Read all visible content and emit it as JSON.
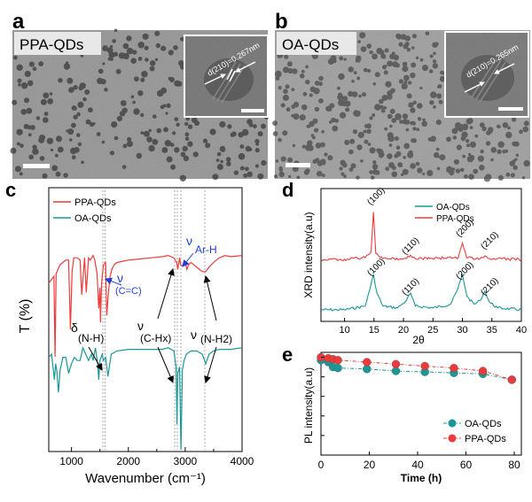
{
  "panels": {
    "a": {
      "letter": "a",
      "label": "PPA-QDs",
      "inset_text": "d(210)=0.267nm"
    },
    "b": {
      "letter": "b",
      "label": "OA-QDs",
      "inset_text": "d(210)=0.265nm"
    },
    "c": {
      "letter": "c"
    },
    "d": {
      "letter": "d"
    },
    "e": {
      "letter": "e"
    }
  },
  "colors": {
    "ppa": "#ee3a3a",
    "oa": "#1a9896",
    "annot": "#1f3fd1"
  },
  "chart_data": [
    {
      "id": "c",
      "type": "line",
      "xlabel": "Wavenumber (cm⁻¹)",
      "ylabel": "T (%)",
      "xlim": [
        600,
        4000
      ],
      "xticks": [
        1000,
        2000,
        3000,
        4000
      ],
      "x_tick_labels": [
        "1000",
        "2000",
        "3000",
        "4000"
      ],
      "legend_position": "top-left",
      "series": [
        {
          "name": "PPA-QDs",
          "x": [
            600,
            690,
            710,
            730,
            760,
            800,
            850,
            900,
            950,
            980,
            1010,
            1040,
            1100,
            1150,
            1180,
            1230,
            1260,
            1300,
            1330,
            1380,
            1410,
            1450,
            1480,
            1500,
            1510,
            1530,
            1560,
            1600,
            1620,
            1650,
            1680,
            1710,
            1750,
            1800,
            1900,
            2000,
            2200,
            2400,
            2600,
            2700,
            2800,
            2850,
            2870,
            2900,
            2920,
            2950,
            3000,
            3030,
            3060,
            3100,
            3200,
            3300,
            3360,
            3420,
            3500,
            3600,
            3700,
            3800,
            4000
          ],
          "y": [
            52,
            55,
            20,
            56,
            58,
            60,
            61,
            62,
            62,
            32,
            57,
            63,
            63,
            62,
            47,
            63,
            48,
            63,
            62,
            64,
            62,
            56,
            41,
            50,
            35,
            52,
            60,
            61,
            38,
            48,
            55,
            58,
            60,
            61,
            61.5,
            62,
            62.5,
            63,
            63.5,
            64,
            63,
            61,
            58,
            63,
            60,
            59.5,
            61,
            58,
            60,
            61,
            59,
            57,
            57,
            59,
            61,
            63,
            64,
            63.5,
            64
          ]
        },
        {
          "name": "OA-QDs",
          "x": [
            600,
            650,
            700,
            720,
            740,
            770,
            800,
            850,
            900,
            950,
            1000,
            1050,
            1100,
            1150,
            1200,
            1250,
            1300,
            1350,
            1380,
            1420,
            1460,
            1480,
            1500,
            1540,
            1560,
            1600,
            1640,
            1700,
            1800,
            2000,
            2200,
            2400,
            2600,
            2700,
            2800,
            2840,
            2856,
            2870,
            2900,
            2925,
            2950,
            2980,
            3020,
            3100,
            3200,
            3300,
            3360,
            3420,
            3500,
            3600,
            3800,
            4000
          ],
          "y": [
            -1,
            0,
            -8,
            -3,
            -5,
            -12,
            -5,
            -1,
            -1,
            -6,
            -3,
            -1,
            -2,
            -2,
            2,
            0,
            -2,
            0,
            -2,
            2,
            -3,
            -8,
            -2,
            0,
            -2,
            -1,
            -7,
            0,
            1,
            1.5,
            1.5,
            1.5,
            1.5,
            2,
            1,
            -4,
            -22,
            -6,
            -4,
            -30,
            -5,
            -2,
            0,
            1,
            1,
            0,
            -3,
            0,
            1,
            1.5,
            1.5,
            2
          ]
        }
      ],
      "annotations": [
        {
          "text": "ν",
          "sub": "(C=C)",
          "color": "annot"
        },
        {
          "text": "ν",
          "sub": "Ar-H",
          "color": "annot"
        },
        {
          "text": "δ",
          "sub": "(N-H)",
          "color": "black"
        },
        {
          "text": "ν",
          "sub": "(C-Hx)",
          "color": "black"
        },
        {
          "text": "ν",
          "sub": "(N-H2)",
          "color": "black"
        }
      ]
    },
    {
      "id": "d",
      "type": "line",
      "xlabel": "2θ",
      "ylabel": "XRD intensity(a.u)",
      "xlim": [
        6,
        40
      ],
      "xticks": [
        10,
        15,
        20,
        25,
        30,
        35,
        40
      ],
      "x_tick_labels": [
        "10",
        "15",
        "20",
        "25",
        "30",
        "35",
        "40"
      ],
      "legend_position": "top-right",
      "series": [
        {
          "name": "OA-QDs",
          "x": [
            6,
            10,
            13.5,
            14.3,
            14.9,
            15.5,
            16.5,
            19,
            20.5,
            21.2,
            22,
            25,
            28,
            29.2,
            30,
            30.8,
            32,
            33,
            33.8,
            34.6,
            36,
            40
          ],
          "y": [
            0.5,
            0.5,
            1.5,
            6,
            10,
            5,
            1.5,
            1,
            3,
            5,
            1.5,
            1,
            2,
            6,
            10,
            4,
            2,
            3,
            5.5,
            2.5,
            1,
            0.5
          ]
        },
        {
          "name": "PPA-QDs",
          "x": [
            6,
            10,
            13.5,
            14.5,
            14.9,
            15.3,
            16.5,
            20.5,
            21.2,
            22,
            29.3,
            30,
            30.7,
            33,
            33.8,
            34.6,
            40
          ],
          "y": [
            0.5,
            0.5,
            1.5,
            5,
            28,
            4,
            1,
            1,
            3,
            1,
            1.5,
            10,
            1.5,
            1,
            2.5,
            1,
            0.5
          ]
        }
      ],
      "annotations": [
        {
          "text": "(100)"
        },
        {
          "text": "(110)"
        },
        {
          "text": "(200)"
        },
        {
          "text": "(210)"
        },
        {
          "text": "(100)"
        },
        {
          "text": "(110)"
        },
        {
          "text": "(200)"
        },
        {
          "text": "(210)"
        }
      ]
    },
    {
      "id": "e",
      "type": "line",
      "xlabel": "Time (h)",
      "ylabel": "PL intensity(a.u)",
      "xlim": [
        0,
        80
      ],
      "ylim": [
        0,
        1.05
      ],
      "xticks": [
        0,
        20,
        40,
        60,
        80
      ],
      "x_tick_labels": [
        "0",
        "20",
        "40",
        "60",
        "80"
      ],
      "legend_position": "bottom-right",
      "series": [
        {
          "name": "OA-QDs",
          "x": [
            0,
            3,
            5,
            7,
            19,
            31,
            43,
            55,
            67,
            79
          ],
          "y": [
            0.97,
            0.95,
            0.9,
            0.89,
            0.88,
            0.86,
            0.85,
            0.84,
            0.83,
            0.77
          ]
        },
        {
          "name": "PPA-QDs",
          "x": [
            0,
            3,
            5,
            7,
            19,
            31,
            43,
            55,
            67,
            79
          ],
          "y": [
            1.0,
            0.99,
            0.98,
            0.97,
            0.95,
            0.93,
            0.91,
            0.89,
            0.86,
            0.77
          ]
        }
      ]
    }
  ]
}
